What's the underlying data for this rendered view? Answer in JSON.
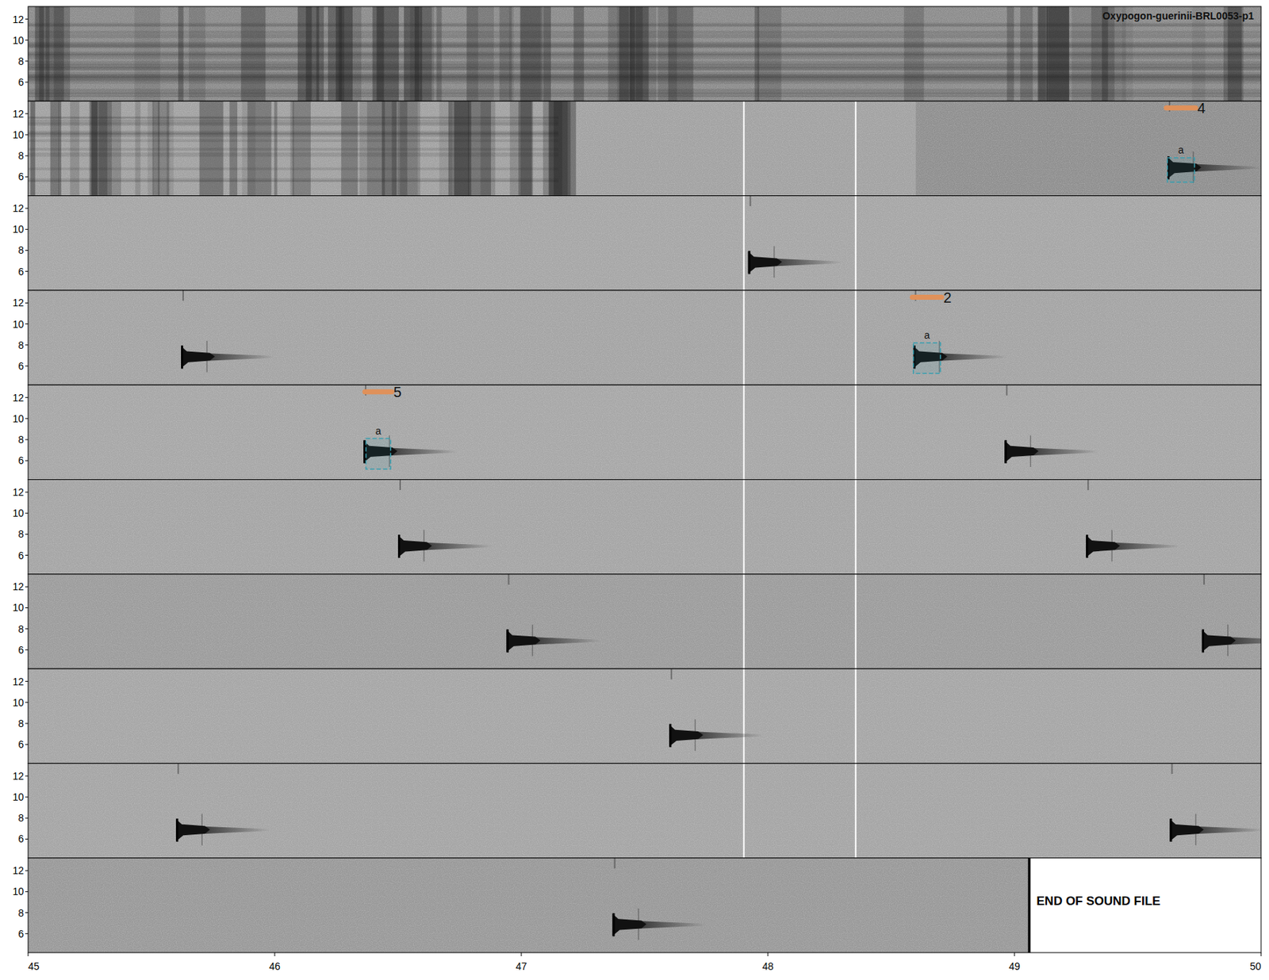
{
  "chart_data": {
    "type": "spectrogram",
    "title": "Oxypogon-guerinii-BRL0053-p1",
    "xlim": [
      45,
      50
    ],
    "xticks": [
      45,
      46,
      47,
      48,
      49,
      50
    ],
    "ylim": [
      4.2,
      13.2
    ],
    "yticks": [
      6,
      8,
      10,
      12
    ],
    "rows": [
      {
        "calls": []
      },
      {
        "calls": [
          {
            "x": 49.62,
            "y": 6.9
          }
        ],
        "selections": [
          {
            "label": "4",
            "box_label": "a",
            "xlim": [
              49.62,
              49.73
            ],
            "ylim": [
              5.5,
              7.8
            ]
          }
        ]
      },
      {
        "calls": [
          {
            "x": 47.92,
            "y": 6.9
          }
        ]
      },
      {
        "calls": [
          {
            "x": 45.62,
            "y": 6.9
          },
          {
            "x": 48.59,
            "y": 6.9
          }
        ],
        "selections": [
          {
            "label": "2",
            "box_label": "a",
            "xlim": [
              48.59,
              48.7
            ],
            "ylim": [
              5.3,
              8.2
            ]
          }
        ]
      },
      {
        "calls": [
          {
            "x": 46.36,
            "y": 6.9
          },
          {
            "x": 48.96,
            "y": 6.9
          }
        ],
        "selections": [
          {
            "label": "5",
            "box_label": "a",
            "xlim": [
              46.37,
              46.47
            ],
            "ylim": [
              5.2,
              8.1
            ]
          }
        ]
      },
      {
        "calls": [
          {
            "x": 46.5,
            "y": 6.9
          },
          {
            "x": 49.29,
            "y": 6.9
          }
        ]
      },
      {
        "calls": [
          {
            "x": 46.94,
            "y": 6.9
          },
          {
            "x": 49.76,
            "y": 6.9
          }
        ]
      },
      {
        "calls": [
          {
            "x": 47.6,
            "y": 6.9
          }
        ]
      },
      {
        "calls": [
          {
            "x": 45.6,
            "y": 6.9
          },
          {
            "x": 49.63,
            "y": 6.9
          }
        ]
      },
      {
        "calls": [
          {
            "x": 47.37,
            "y": 6.9
          }
        ],
        "end": 49.06,
        "end_text": "END OF SOUND FILE"
      }
    ]
  }
}
